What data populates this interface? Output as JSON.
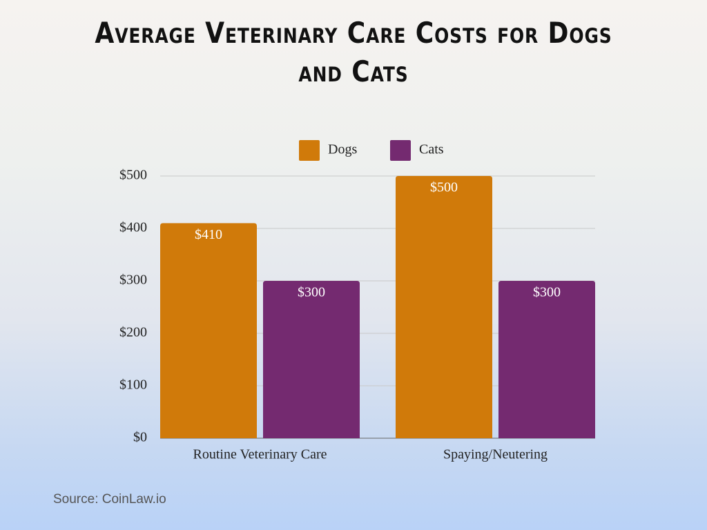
{
  "chart_data": {
    "type": "bar",
    "title": "Average Veterinary Care Costs for Dogs and Cats",
    "categories": [
      "Routine Veterinary Care",
      "Spaying/Neutering"
    ],
    "series": [
      {
        "name": "Dogs",
        "color": "#d07a0a",
        "values": [
          410,
          500
        ],
        "value_labels": [
          "$410",
          "$500"
        ]
      },
      {
        "name": "Cats",
        "color": "#742a70",
        "values": [
          300,
          300
        ],
        "value_labels": [
          "$300",
          "$300"
        ]
      }
    ],
    "ylim": [
      0,
      500
    ],
    "yticks": [
      {
        "value": 0,
        "label": "$0"
      },
      {
        "value": 100,
        "label": "$100"
      },
      {
        "value": 200,
        "label": "$200"
      },
      {
        "value": 300,
        "label": "$300"
      },
      {
        "value": 400,
        "label": "$400"
      },
      {
        "value": 500,
        "label": "$500"
      }
    ],
    "grid": true,
    "legend": "top",
    "source": "Source: CoinLaw.io"
  }
}
